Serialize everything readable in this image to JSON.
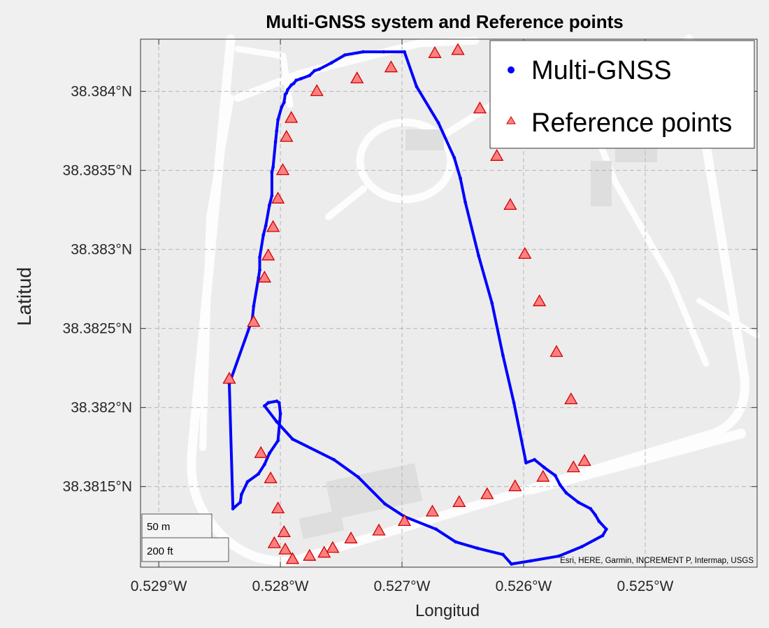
{
  "chart_data": {
    "type": "scatter",
    "title": "Multi-GNSS system and Reference points",
    "xlabel": "Longitud",
    "ylabel": "Latitud",
    "xlim": [
      -0.52915,
      -0.52408
    ],
    "ylim": [
      38.38099,
      38.38433
    ],
    "x_ticks": [
      -0.529,
      -0.528,
      -0.527,
      -0.526,
      -0.525
    ],
    "x_tick_labels": [
      "0.529°W",
      "0.528°W",
      "0.527°W",
      "0.526°W",
      "0.525°W"
    ],
    "y_ticks": [
      38.3815,
      38.382,
      38.3825,
      38.383,
      38.3835,
      38.384
    ],
    "y_tick_labels": [
      "38.3815°N",
      "38.382°N",
      "38.3825°N",
      "38.383°N",
      "38.3835°N",
      "38.384°N"
    ],
    "grid": true,
    "legend": {
      "position": "top-right",
      "entries": [
        "Multi-GNSS",
        "Reference points"
      ]
    },
    "attribution": "Esri, HERE, Garmin, INCREMENT P, Intermap, USGS",
    "scalebar": {
      "metric": "50 m",
      "imperial": "200 ft"
    },
    "series": [
      {
        "name": "Multi-GNSS",
        "color": "#0000ff",
        "marker": "dot",
        "x": [
          -0.52842,
          -0.52823,
          -0.52822,
          -0.52818,
          -0.52817,
          -0.52817,
          -0.52814,
          -0.52812,
          -0.52809,
          -0.52807,
          -0.52807,
          -0.52806,
          -0.52804,
          -0.52803,
          -0.52802,
          -0.52799,
          -0.52797,
          -0.52796,
          -0.52795,
          -0.52794,
          -0.52791,
          -0.52789,
          -0.52787,
          -0.52783,
          -0.52776,
          -0.52772,
          -0.52768,
          -0.52758,
          -0.52747,
          -0.52732,
          -0.52715,
          -0.52698,
          -0.52688,
          -0.5267,
          -0.52657,
          -0.52652,
          -0.52648,
          -0.52637,
          -0.52626,
          -0.52617,
          -0.52608,
          -0.52598,
          -0.52591,
          -0.52583,
          -0.52574,
          -0.5257,
          -0.52565,
          -0.52555,
          -0.52545,
          -0.52541,
          -0.52538,
          -0.52532,
          -0.52535,
          -0.52552,
          -0.52571,
          -0.52594,
          -0.5261,
          -0.52617,
          -0.52638,
          -0.52656,
          -0.52672,
          -0.52698,
          -0.52714,
          -0.52736,
          -0.52756,
          -0.5279,
          -0.52803,
          -0.52813,
          -0.5281,
          -0.52803,
          -0.52801,
          -0.528,
          -0.52802,
          -0.52809,
          -0.52813,
          -0.52818,
          -0.52827,
          -0.52832,
          -0.52833,
          -0.52839
        ],
        "y": [
          38.38215,
          38.38256,
          38.38264,
          38.38282,
          38.38287,
          38.38295,
          38.38309,
          38.38315,
          38.38328,
          38.38334,
          38.38349,
          38.38352,
          38.38368,
          38.38375,
          38.38382,
          38.3839,
          38.38393,
          38.38398,
          38.38399,
          38.38401,
          38.38404,
          38.38405,
          38.38407,
          38.38408,
          38.3841,
          38.38413,
          38.38414,
          38.38418,
          38.38423,
          38.38425,
          38.38425,
          38.38425,
          38.38403,
          38.3838,
          38.38358,
          38.38345,
          38.3833,
          38.38296,
          38.38266,
          38.38233,
          38.38203,
          38.38165,
          38.38167,
          38.38162,
          38.38157,
          38.38151,
          38.38146,
          38.3814,
          38.38136,
          38.38132,
          38.38128,
          38.38123,
          38.38119,
          38.38112,
          38.38106,
          38.38103,
          38.38101,
          38.38107,
          38.38111,
          38.38115,
          38.38123,
          38.38131,
          38.38139,
          38.38156,
          38.38167,
          38.3818,
          38.38191,
          38.38201,
          38.38203,
          38.38204,
          38.38203,
          38.38196,
          38.38179,
          38.38171,
          38.38164,
          38.38158,
          38.38153,
          38.38145,
          38.3814,
          38.38136
        ]
      },
      {
        "name": "Reference points",
        "color": "#ff8080",
        "edge_color": "#d00000",
        "marker": "triangle",
        "x": [
          -0.52842,
          -0.52822,
          -0.52813,
          -0.5281,
          -0.52806,
          -0.52802,
          -0.52798,
          -0.52795,
          -0.52791,
          -0.5277,
          -0.52737,
          -0.52709,
          -0.52673,
          -0.52654,
          -0.52636,
          -0.52622,
          -0.52611,
          -0.52599,
          -0.52587,
          -0.52573,
          -0.52561,
          -0.5255,
          -0.52559,
          -0.52584,
          -0.52607,
          -0.5263,
          -0.52653,
          -0.52675,
          -0.52698,
          -0.52719,
          -0.52742,
          -0.52757,
          -0.52764,
          -0.52776,
          -0.5279,
          -0.52796,
          -0.52805,
          -0.52797,
          -0.52802,
          -0.52808,
          -0.52816
        ],
        "y": [
          38.38218,
          38.38254,
          38.38282,
          38.38296,
          38.38314,
          38.38332,
          38.3835,
          38.38371,
          38.38383,
          38.384,
          38.38408,
          38.38415,
          38.38424,
          38.38426,
          38.38389,
          38.38359,
          38.38328,
          38.38297,
          38.38267,
          38.38235,
          38.38205,
          38.38166,
          38.38162,
          38.38156,
          38.3815,
          38.38145,
          38.3814,
          38.38134,
          38.38128,
          38.38122,
          38.38117,
          38.38111,
          38.38108,
          38.38106,
          38.38104,
          38.3811,
          38.38114,
          38.38121,
          38.38136,
          38.38155,
          38.38171
        ]
      }
    ]
  }
}
